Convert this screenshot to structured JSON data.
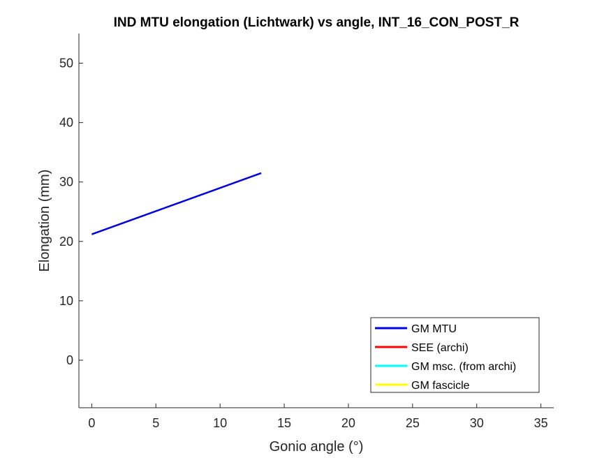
{
  "chart_data": {
    "type": "line",
    "title": "IND MTU elongation (Lichtwark) vs angle, INT_16_CON_POST_R",
    "xlabel": "Gonio angle (°)",
    "ylabel": "Elongation (mm)",
    "xlim": [
      -1,
      36
    ],
    "ylim": [
      -8,
      55
    ],
    "xticks": [
      0,
      5,
      10,
      15,
      20,
      25,
      30,
      35
    ],
    "yticks": [
      0,
      10,
      20,
      30,
      40,
      50
    ],
    "legend_position": "bottom-right",
    "series": [
      {
        "name": "GM MTU",
        "color": "#0000e6",
        "x": [
          0,
          13.2
        ],
        "y": [
          21.2,
          31.5
        ]
      },
      {
        "name": "SEE (archi)",
        "color": "#ff0000",
        "x": [],
        "y": []
      },
      {
        "name": "GM msc. (from archi)",
        "color": "#00ffff",
        "x": [],
        "y": []
      },
      {
        "name": "GM fascicle",
        "color": "#ffff00",
        "x": [],
        "y": []
      }
    ]
  }
}
